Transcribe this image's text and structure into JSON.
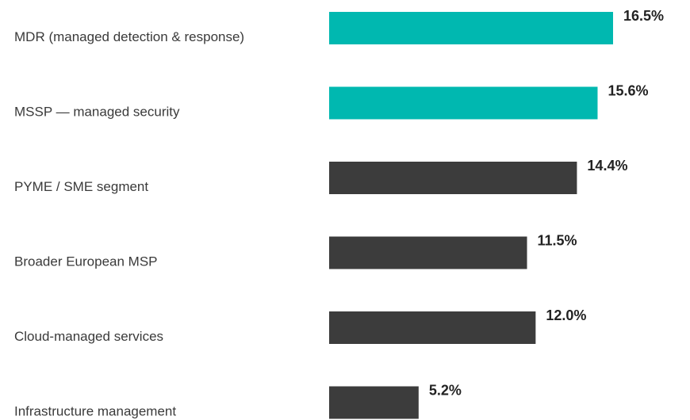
{
  "chart_data": {
    "type": "bar",
    "orientation": "horizontal",
    "categories": [
      "MDR (managed detection & response)",
      "MSSP — managed security",
      "PYME / SME segment",
      "Broader European MSP",
      "Cloud-managed services",
      "Infrastructure management"
    ],
    "values": [
      16.5,
      15.6,
      14.4,
      11.5,
      12.0,
      5.2
    ],
    "value_labels": [
      "16.5%",
      "15.6%",
      "14.4%",
      "11.5%",
      "12.0%",
      "5.2%"
    ],
    "bar_colors": [
      "#00b8b0",
      "#00b8b0",
      "#3c3c3c",
      "#3c3c3c",
      "#3c3c3c",
      "#3c3c3c"
    ],
    "title": "",
    "xlabel": "",
    "ylabel": "",
    "xlim": [
      0,
      16.5
    ],
    "grid": false,
    "legend": "none"
  }
}
